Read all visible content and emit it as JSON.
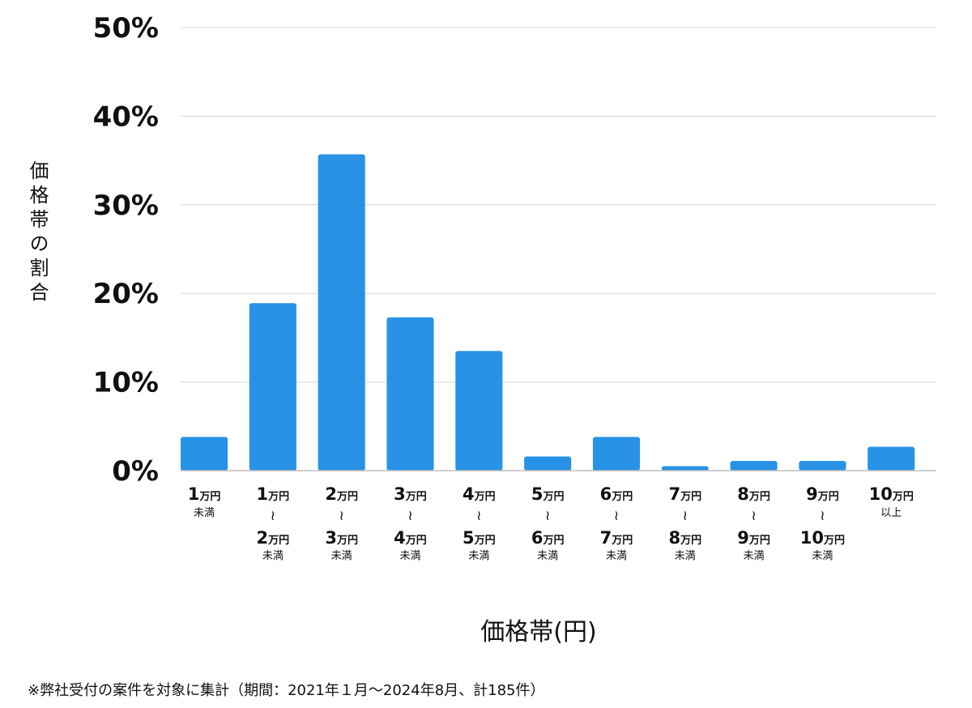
{
  "chart_data": {
    "type": "bar",
    "xlabel": "価格帯(円)",
    "ylabel": "価格帯の割合",
    "ylim": [
      0,
      50
    ],
    "ytick_labels": [
      "0%",
      "10%",
      "20%",
      "30%",
      "40%",
      "50%"
    ],
    "grid": true,
    "bar_color": "#2893e6",
    "categories": [
      {
        "lines": [
          [
            "1",
            "万円"
          ]
        ],
        "note": "未満"
      },
      {
        "lines": [
          [
            "1",
            "万円"
          ],
          [
            "2",
            "万円"
          ]
        ],
        "note": "未満"
      },
      {
        "lines": [
          [
            "2",
            "万円"
          ],
          [
            "3",
            "万円"
          ]
        ],
        "note": "未満"
      },
      {
        "lines": [
          [
            "3",
            "万円"
          ],
          [
            "4",
            "万円"
          ]
        ],
        "note": "未満"
      },
      {
        "lines": [
          [
            "4",
            "万円"
          ],
          [
            "5",
            "万円"
          ]
        ],
        "note": "未満"
      },
      {
        "lines": [
          [
            "5",
            "万円"
          ],
          [
            "6",
            "万円"
          ]
        ],
        "note": "未満"
      },
      {
        "lines": [
          [
            "6",
            "万円"
          ],
          [
            "7",
            "万円"
          ]
        ],
        "note": "未満"
      },
      {
        "lines": [
          [
            "7",
            "万円"
          ],
          [
            "8",
            "万円"
          ]
        ],
        "note": "未満"
      },
      {
        "lines": [
          [
            "8",
            "万円"
          ],
          [
            "9",
            "万円"
          ]
        ],
        "note": "未満"
      },
      {
        "lines": [
          [
            "9",
            "万円"
          ],
          [
            "10",
            "万円"
          ]
        ],
        "note": "未満"
      },
      {
        "lines": [
          [
            "10",
            "万円"
          ]
        ],
        "note": "以上"
      }
    ],
    "range_mark": "≀",
    "values": [
      3.8,
      18.9,
      35.7,
      17.3,
      13.5,
      1.6,
      3.8,
      0.5,
      1.1,
      1.1,
      2.7
    ]
  },
  "footnote": "※弊社受付の案件を対象に集計（期間：2021年１月〜2024年8月、計185件）"
}
